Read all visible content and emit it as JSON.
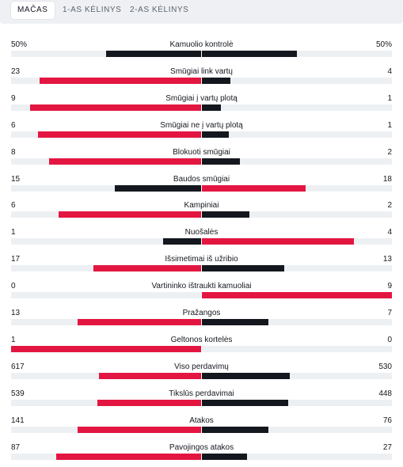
{
  "tabs": [
    {
      "label": "Mačas",
      "active": true
    },
    {
      "label": "1-as kėlinys",
      "active": false
    },
    {
      "label": "2-as kėlinys",
      "active": false
    }
  ],
  "colors": {
    "winner": "#e31641",
    "loser": "#14181e",
    "track": "#edf0f3"
  },
  "stats": [
    {
      "name": "Kamuolio kontrolė",
      "home": "50%",
      "away": "50%",
      "home_value": 50,
      "away_value": 50
    },
    {
      "name": "Smūgiai link vartų",
      "home": "23",
      "away": "4",
      "home_value": 23,
      "away_value": 4
    },
    {
      "name": "Smūgiai į vartų plotą",
      "home": "9",
      "away": "1",
      "home_value": 9,
      "away_value": 1
    },
    {
      "name": "Smūgiai ne į vartų plotą",
      "home": "6",
      "away": "1",
      "home_value": 6,
      "away_value": 1
    },
    {
      "name": "Blokuoti smūgiai",
      "home": "8",
      "away": "2",
      "home_value": 8,
      "away_value": 2
    },
    {
      "name": "Baudos smūgiai",
      "home": "15",
      "away": "18",
      "home_value": 15,
      "away_value": 18
    },
    {
      "name": "Kampiniai",
      "home": "6",
      "away": "2",
      "home_value": 6,
      "away_value": 2
    },
    {
      "name": "Nuošalės",
      "home": "1",
      "away": "4",
      "home_value": 1,
      "away_value": 4
    },
    {
      "name": "Išsimetimai iš užribio",
      "home": "17",
      "away": "13",
      "home_value": 17,
      "away_value": 13
    },
    {
      "name": "Vartininko ištraukti kamuoliai",
      "home": "0",
      "away": "9",
      "home_value": 0,
      "away_value": 9
    },
    {
      "name": "Pražangos",
      "home": "13",
      "away": "7",
      "home_value": 13,
      "away_value": 7
    },
    {
      "name": "Geltonos kortelės",
      "home": "1",
      "away": "0",
      "home_value": 1,
      "away_value": 0
    },
    {
      "name": "Viso perdavimų",
      "home": "617",
      "away": "530",
      "home_value": 617,
      "away_value": 530
    },
    {
      "name": "Tikslūs perdavimai",
      "home": "539",
      "away": "448",
      "home_value": 539,
      "away_value": 448
    },
    {
      "name": "Atakos",
      "home": "141",
      "away": "76",
      "home_value": 141,
      "away_value": 76
    },
    {
      "name": "Pavojingos atakos",
      "home": "87",
      "away": "27",
      "home_value": 87,
      "away_value": 27
    }
  ]
}
